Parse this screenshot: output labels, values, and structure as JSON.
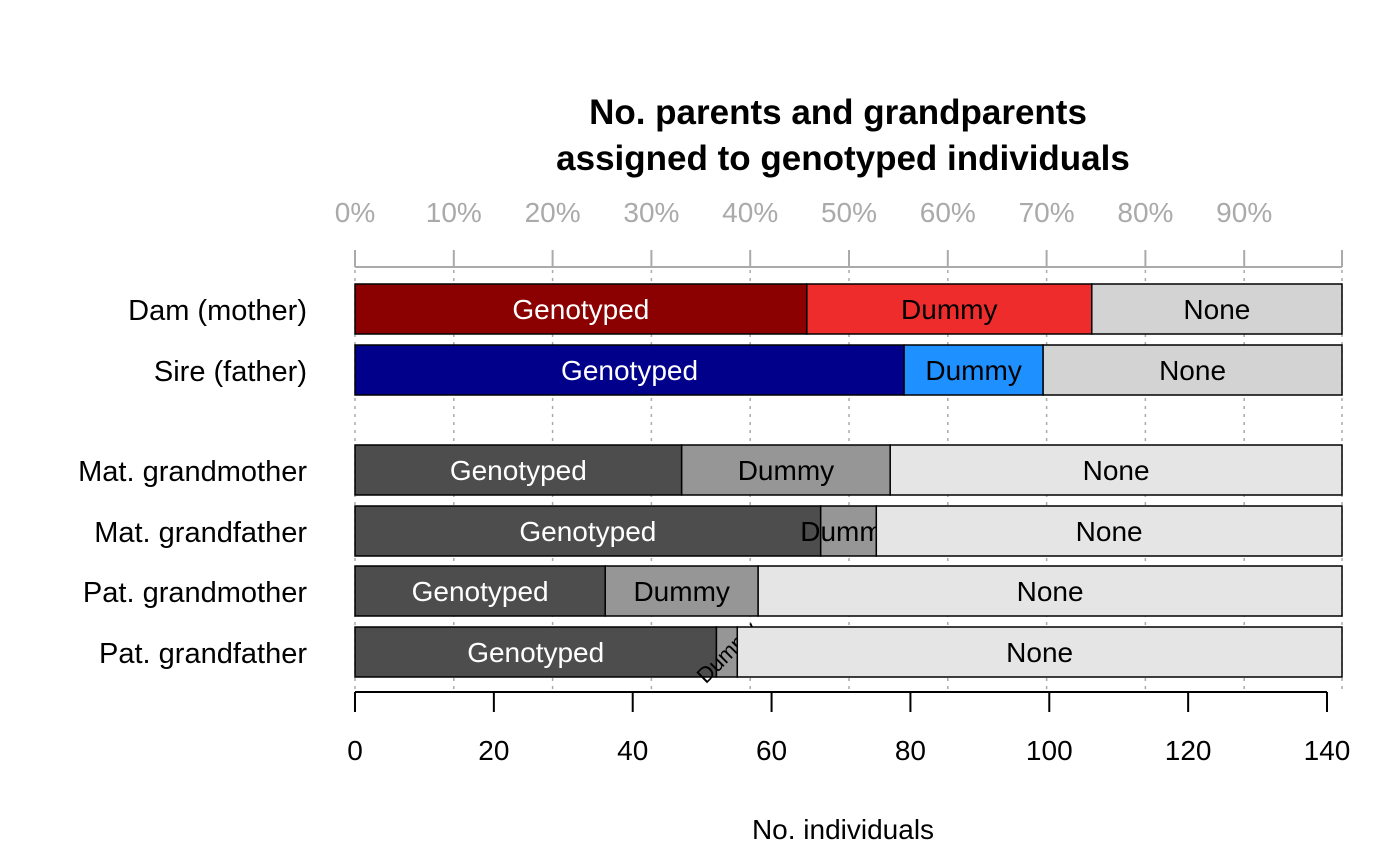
{
  "chart_data": {
    "type": "bar",
    "orientation": "horizontal",
    "stacked": true,
    "title_lines": [
      "No. parents and grandparents",
      "assigned to genotyped individuals"
    ],
    "xlabel": "No. individuals",
    "xlim": [
      0,
      142
    ],
    "x_ticks": [
      0,
      20,
      40,
      60,
      80,
      100,
      120,
      140
    ],
    "x_tick_labels": [
      "0",
      "20",
      "40",
      "60",
      "80",
      "100",
      "120",
      "140"
    ],
    "top_axis_percent_ticks": [
      "0%",
      "10%",
      "20%",
      "30%",
      "40%",
      "50%",
      "60%",
      "70%",
      "80%",
      "90%"
    ],
    "grid": "vertical dotted at percent ticks",
    "categories": [
      "Dam (mother)",
      "Sire (father)",
      "Mat. grandmother",
      "Mat. grandfather",
      "Pat. grandmother",
      "Pat. grandfather"
    ],
    "series": [
      {
        "name": "Genotyped",
        "values": [
          65,
          79,
          47,
          67,
          36,
          52
        ]
      },
      {
        "name": "Dummy",
        "values": [
          41,
          20,
          30,
          8,
          22,
          3
        ]
      },
      {
        "name": "None",
        "values": [
          36,
          43,
          65,
          67,
          84,
          87
        ]
      }
    ],
    "segment_colors": [
      [
        "#8b0000",
        "#ee2c2c",
        "#d3d3d3"
      ],
      [
        "#00008b",
        "#1e90ff",
        "#d3d3d3"
      ],
      [
        "#4d4d4d",
        "#969696",
        "#e5e5e5"
      ],
      [
        "#4d4d4d",
        "#969696",
        "#e5e5e5"
      ],
      [
        "#4d4d4d",
        "#969696",
        "#e5e5e5"
      ],
      [
        "#4d4d4d",
        "#969696",
        "#e5e5e5"
      ]
    ],
    "label_colors": [
      "#ffffff",
      "#000000",
      "#000000"
    ]
  }
}
